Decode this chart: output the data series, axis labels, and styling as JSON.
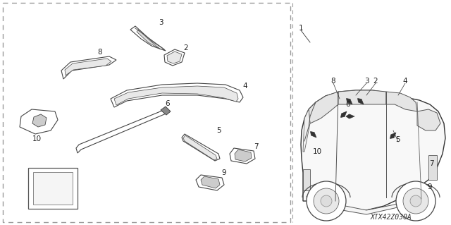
{
  "bg_color": "#ffffff",
  "diagram_code": "XTX42Z030A",
  "font_size_label": 7.5,
  "font_size_code": 7.0,
  "line_color": "#444444",
  "border_color": "#999999"
}
